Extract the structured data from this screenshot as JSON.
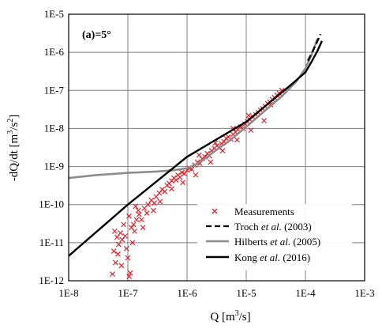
{
  "chart_data": {
    "type": "scatter",
    "panel_label": "(a)=5°",
    "xlabel_main": "Q [m",
    "xlabel_sup": "3",
    "xlabel_tail": "/s]",
    "ylabel_main": "-dQ/dt [m",
    "ylabel_sup1": "3",
    "ylabel_mid": "/s",
    "ylabel_sup2": "2",
    "ylabel_tail": "]",
    "x_scale": "log",
    "y_scale": "log",
    "xlim": [
      1e-08,
      0.001
    ],
    "ylim": [
      1e-12,
      1e-05
    ],
    "grid": true,
    "legend_position": "bottom-right",
    "x_ticks": [
      "1E-8",
      "1E-7",
      "1E-6",
      "1E-5",
      "1E-4",
      "1E-3"
    ],
    "y_ticks": [
      "1E-12",
      "1E-11",
      "1E-10",
      "1E-9",
      "1E-8",
      "1E-7",
      "1E-6",
      "1E-5"
    ],
    "legend": [
      {
        "label": "Measurements",
        "style": "marker",
        "color": "#e8202a"
      },
      {
        "label_pre": "Troch ",
        "label_italic": "et al.",
        "label_post": " (2003)",
        "style": "dashed",
        "color": "#000000"
      },
      {
        "label_pre": "Hilberts ",
        "label_italic": "et al.",
        "label_post": " (2005)",
        "style": "solid-gray",
        "color": "#8c8c8c"
      },
      {
        "label_pre": "Kong ",
        "label_italic": "et al.",
        "label_post": " (2016)",
        "style": "solid",
        "color": "#000000"
      }
    ],
    "series": [
      {
        "name": "Measurements",
        "kind": "scatter",
        "color": "#e8202a",
        "points": [
          [
            5.5e-08,
            1.5e-12
          ],
          [
            6.2e-08,
            3e-12
          ],
          [
            5.8e-08,
            6e-12
          ],
          [
            7e-08,
            9e-12
          ],
          [
            6.6e-08,
            1.4e-11
          ],
          [
            8e-08,
            1.2e-11
          ],
          [
            6e-08,
            2e-11
          ],
          [
            7.5e-08,
            1.8e-11
          ],
          [
            9e-08,
            1.5e-11
          ],
          [
            1e-07,
            4e-12
          ],
          [
            1.05e-07,
            1.3e-12
          ],
          [
            1.1e-07,
            1.6e-12
          ],
          [
            9.5e-08,
            7e-12
          ],
          [
            1.2e-07,
            1e-11
          ],
          [
            1.15e-07,
            2.5e-11
          ],
          [
            1.3e-07,
            2e-11
          ],
          [
            1.25e-07,
            3e-11
          ],
          [
            1.4e-07,
            4e-11
          ],
          [
            1.55e-07,
            5.5e-11
          ],
          [
            1.7e-07,
            4e-11
          ],
          [
            1.5e-07,
            7e-11
          ],
          [
            1.9e-07,
            8e-11
          ],
          [
            2.1e-07,
            6e-11
          ],
          [
            2.2e-07,
            1e-10
          ],
          [
            2.5e-07,
            1.3e-10
          ],
          [
            2.8e-07,
            1.1e-10
          ],
          [
            3e-07,
            1.6e-10
          ],
          [
            3.4e-07,
            2e-10
          ],
          [
            3.8e-07,
            2.5e-10
          ],
          [
            4.2e-07,
            2.2e-10
          ],
          [
            4.6e-07,
            3.2e-10
          ],
          [
            5e-07,
            3.6e-10
          ],
          [
            5.5e-07,
            4.2e-10
          ],
          [
            6e-07,
            5e-10
          ],
          [
            6.5e-07,
            4.4e-10
          ],
          [
            7e-07,
            6e-10
          ],
          [
            7.6e-07,
            5.2e-10
          ],
          [
            8.2e-07,
            7e-10
          ],
          [
            9e-07,
            6.5e-10
          ],
          [
            1e-06,
            8e-10
          ],
          [
            1.1e-06,
            9e-10
          ],
          [
            1.2e-06,
            8.5e-10
          ],
          [
            1.35e-06,
            1.1e-09
          ],
          [
            1.5e-06,
            1.3e-09
          ],
          [
            1.65e-06,
            1.2e-09
          ],
          [
            1.8e-06,
            1.6e-09
          ],
          [
            2e-06,
            1.8e-09
          ],
          [
            2.2e-06,
            2.2e-09
          ],
          [
            2.4e-06,
            1.9e-09
          ],
          [
            2.6e-06,
            2.6e-09
          ],
          [
            2.9e-06,
            3e-09
          ],
          [
            3.2e-06,
            3.5e-09
          ],
          [
            3.5e-06,
            3.1e-09
          ],
          [
            3.8e-06,
            4e-09
          ],
          [
            4.2e-06,
            4.5e-09
          ],
          [
            4.6e-06,
            5.5e-09
          ],
          [
            5e-06,
            6e-09
          ],
          [
            5.5e-06,
            5.2e-09
          ],
          [
            6e-06,
            7e-09
          ],
          [
            6.6e-06,
            8e-09
          ],
          [
            7.2e-06,
            9.5e-09
          ],
          [
            8e-06,
            1.1e-08
          ],
          [
            8.8e-06,
            1e-08
          ],
          [
            9.5e-06,
            1.3e-08
          ],
          [
            1.05e-05,
            1.5e-08
          ],
          [
            1.15e-05,
            1.7e-08
          ],
          [
            1.3e-05,
            2e-08
          ],
          [
            1.45e-05,
            2.3e-08
          ],
          [
            1.6e-05,
            2.6e-08
          ],
          [
            1.75e-05,
            3e-08
          ],
          [
            1.9e-05,
            3.3e-08
          ],
          [
            2.1e-05,
            3.8e-08
          ],
          [
            2.3e-05,
            4.5e-08
          ],
          [
            2.5e-05,
            5e-08
          ],
          [
            2.75e-05,
            5.8e-08
          ],
          [
            3e-05,
            6.5e-08
          ],
          [
            3.3e-05,
            7.5e-08
          ],
          [
            3.6e-05,
            8.5e-08
          ],
          [
            4e-05,
            1e-07
          ],
          [
            1.4e-06,
            6e-10
          ],
          [
            2.5e-06,
            1.3e-09
          ],
          [
            4e-06,
            2.6e-09
          ],
          [
            7e-06,
            5e-09
          ],
          [
            1.2e-05,
            9e-09
          ],
          [
            2e-05,
            1.6e-08
          ],
          [
            3.5e-07,
            1.2e-10
          ],
          [
            5.5e-07,
            2.6e-10
          ],
          [
            8.5e-07,
            3.8e-10
          ],
          [
            2.7e-07,
            7e-11
          ],
          [
            1.8e-07,
            2.5e-11
          ],
          [
            8.5e-08,
            3e-11
          ],
          [
            1.05e-07,
            5e-11
          ],
          [
            1.35e-07,
            9e-11
          ],
          [
            6.8e-08,
            5e-12
          ],
          [
            7.8e-08,
            2.5e-12
          ],
          [
            1.6e-06,
            2e-09
          ],
          [
            3e-06,
            4.2e-09
          ],
          [
            6e-06,
            1e-08
          ],
          [
            1.1e-05,
            2.2e-08
          ],
          [
            2.6e-05,
            4.2e-08
          ]
        ]
      },
      {
        "name": "Troch et al. (2003)",
        "kind": "line",
        "style": "dashed",
        "color": "#000000",
        "points": [
          [
            0.00011,
            6e-07
          ],
          [
            0.00013,
            1e-06
          ],
          [
            0.000155,
            1.8e-06
          ],
          [
            0.00018,
            3e-06
          ]
        ]
      },
      {
        "name": "Hilberts et al. (2005)",
        "kind": "line",
        "style": "solid",
        "color": "#8c8c8c",
        "points": [
          [
            1e-08,
            5e-10
          ],
          [
            3e-08,
            6e-10
          ],
          [
            1e-07,
            6.8e-10
          ],
          [
            3e-07,
            7.4e-10
          ],
          [
            6e-07,
            8e-10
          ],
          [
            1e-06,
            9e-10
          ],
          [
            1.5e-06,
            1.2e-09
          ],
          [
            2e-06,
            1.6e-09
          ],
          [
            3e-06,
            2.6e-09
          ],
          [
            5e-06,
            4.5e-09
          ],
          [
            1e-05,
            1.1e-08
          ],
          [
            2e-05,
            2.8e-08
          ],
          [
            4e-05,
            7e-08
          ],
          [
            7e-05,
            1.7e-07
          ],
          [
            0.0001,
            3.8e-07
          ],
          [
            0.00012,
            7e-07
          ],
          [
            0.00014,
            1.3e-06
          ],
          [
            0.00016,
            2.3e-06
          ]
        ]
      },
      {
        "name": "Kong et al. (2016)",
        "kind": "line",
        "style": "solid",
        "color": "#000000",
        "points": [
          [
            1e-08,
            4.5e-12
          ],
          [
            1e-07,
            1e-10
          ],
          [
            1e-06,
            1.8e-09
          ],
          [
            1e-05,
            1.5e-08
          ],
          [
            6e-05,
            1.5e-07
          ],
          [
            0.0001,
            3e-07
          ],
          [
            0.00013,
            6e-07
          ],
          [
            0.00016,
            1.1e-06
          ],
          [
            0.00019,
            2e-06
          ]
        ]
      }
    ]
  }
}
